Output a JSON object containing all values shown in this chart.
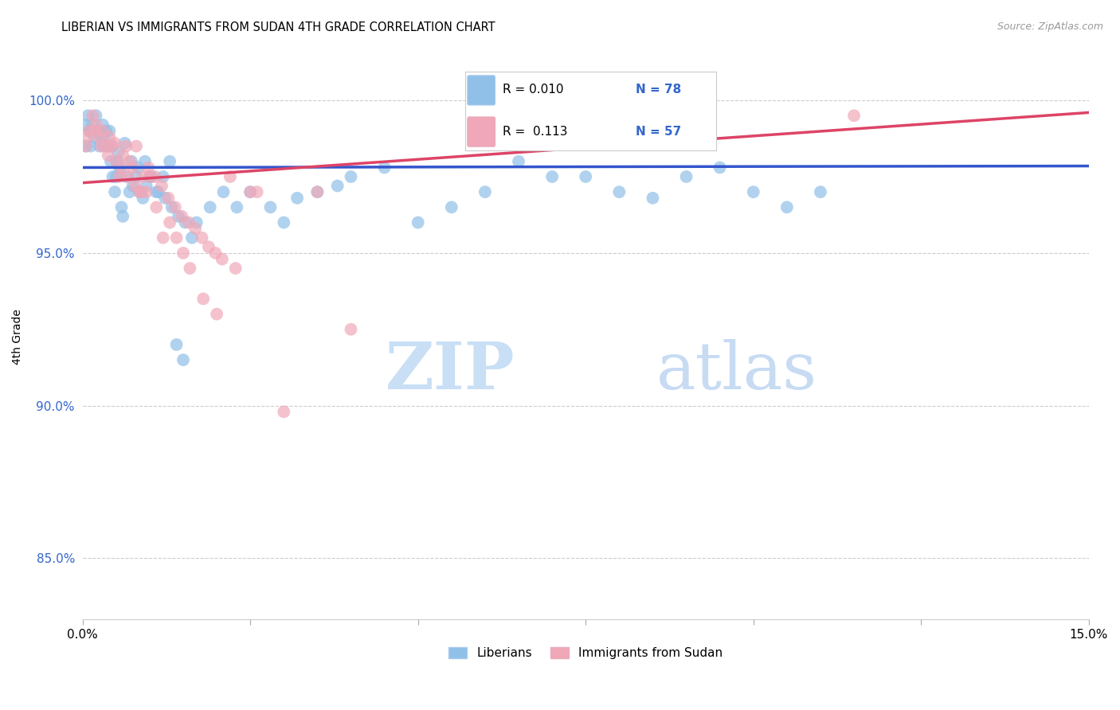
{
  "title": "LIBERIAN VS IMMIGRANTS FROM SUDAN 4TH GRADE CORRELATION CHART",
  "source": "Source: ZipAtlas.com",
  "ylabel": "4th Grade",
  "xlim": [
    0.0,
    15.0
  ],
  "ylim": [
    83.0,
    101.5
  ],
  "yticks": [
    85.0,
    90.0,
    95.0,
    100.0
  ],
  "xticks": [
    0.0,
    2.5,
    5.0,
    7.5,
    10.0,
    12.5,
    15.0
  ],
  "xtick_labels": [
    "0.0%",
    "",
    "",
    "",
    "",
    "",
    "15.0%"
  ],
  "blue_color": "#90c0e8",
  "pink_color": "#f0a8b8",
  "blue_line_color": "#3355cc",
  "pink_line_color": "#dd4466",
  "legend_R1": "0.010",
  "legend_N1": "78",
  "legend_R2": "0.113",
  "legend_N2": "57",
  "legend_label1": "Liberians",
  "legend_label2": "Immigrants from Sudan",
  "blue_x": [
    0.05,
    0.08,
    0.1,
    0.12,
    0.15,
    0.18,
    0.2,
    0.22,
    0.25,
    0.28,
    0.3,
    0.32,
    0.35,
    0.38,
    0.4,
    0.42,
    0.45,
    0.48,
    0.5,
    0.52,
    0.55,
    0.58,
    0.6,
    0.65,
    0.7,
    0.75,
    0.8,
    0.85,
    0.9,
    0.95,
    1.0,
    1.1,
    1.2,
    1.3,
    1.4,
    1.5,
    1.7,
    1.9,
    2.1,
    2.3,
    2.5,
    2.8,
    3.0,
    3.2,
    3.5,
    3.8,
    4.0,
    4.5,
    5.0,
    5.5,
    6.0,
    6.5,
    7.0,
    7.5,
    8.0,
    8.5,
    9.0,
    9.5,
    10.0,
    10.5,
    11.0,
    0.06,
    0.13,
    0.23,
    0.33,
    0.43,
    0.53,
    0.63,
    0.73,
    0.83,
    0.93,
    1.03,
    1.13,
    1.23,
    1.33,
    1.43,
    1.53,
    1.63
  ],
  "blue_y": [
    98.5,
    99.5,
    99.0,
    98.5,
    99.2,
    98.8,
    99.5,
    99.0,
    98.5,
    98.8,
    99.2,
    98.5,
    99.0,
    98.5,
    99.0,
    98.0,
    97.5,
    97.0,
    97.5,
    98.0,
    97.8,
    96.5,
    96.2,
    97.5,
    97.0,
    97.2,
    97.5,
    97.0,
    96.8,
    97.2,
    97.5,
    97.0,
    97.5,
    98.0,
    92.0,
    91.5,
    96.0,
    96.5,
    97.0,
    96.5,
    97.0,
    96.5,
    96.0,
    96.8,
    97.0,
    97.2,
    97.5,
    97.8,
    96.0,
    96.5,
    97.0,
    98.0,
    97.5,
    97.5,
    97.0,
    96.8,
    97.5,
    97.8,
    97.0,
    96.5,
    97.0,
    99.2,
    99.0,
    99.0,
    98.7,
    98.5,
    98.3,
    98.6,
    98.0,
    97.8,
    98.0,
    97.5,
    97.0,
    96.8,
    96.5,
    96.2,
    96.0,
    95.5
  ],
  "pink_x": [
    0.05,
    0.1,
    0.15,
    0.2,
    0.25,
    0.3,
    0.35,
    0.4,
    0.45,
    0.5,
    0.55,
    0.6,
    0.65,
    0.7,
    0.75,
    0.8,
    0.85,
    0.9,
    0.95,
    1.0,
    1.1,
    1.2,
    1.3,
    1.4,
    1.5,
    1.6,
    1.8,
    2.0,
    2.2,
    2.5,
    3.0,
    3.5,
    4.0,
    11.5,
    0.08,
    0.18,
    0.28,
    0.38,
    0.48,
    0.58,
    0.68,
    0.78,
    0.88,
    0.98,
    1.08,
    1.18,
    1.28,
    1.38,
    1.48,
    1.58,
    1.68,
    1.78,
    1.88,
    1.98,
    2.08,
    2.28,
    2.6
  ],
  "pink_y": [
    98.5,
    99.0,
    99.5,
    99.2,
    98.8,
    99.0,
    98.5,
    98.8,
    98.5,
    98.0,
    97.5,
    98.2,
    98.5,
    98.0,
    97.8,
    98.5,
    97.0,
    97.5,
    97.0,
    97.5,
    96.5,
    95.5,
    96.0,
    95.5,
    95.0,
    94.5,
    93.5,
    93.0,
    97.5,
    97.0,
    89.8,
    97.0,
    92.5,
    99.5,
    98.8,
    99.0,
    98.5,
    98.2,
    98.6,
    97.8,
    97.5,
    97.2,
    97.0,
    97.8,
    97.5,
    97.2,
    96.8,
    96.5,
    96.2,
    96.0,
    95.8,
    95.5,
    95.2,
    95.0,
    94.8,
    94.5,
    97.0
  ]
}
